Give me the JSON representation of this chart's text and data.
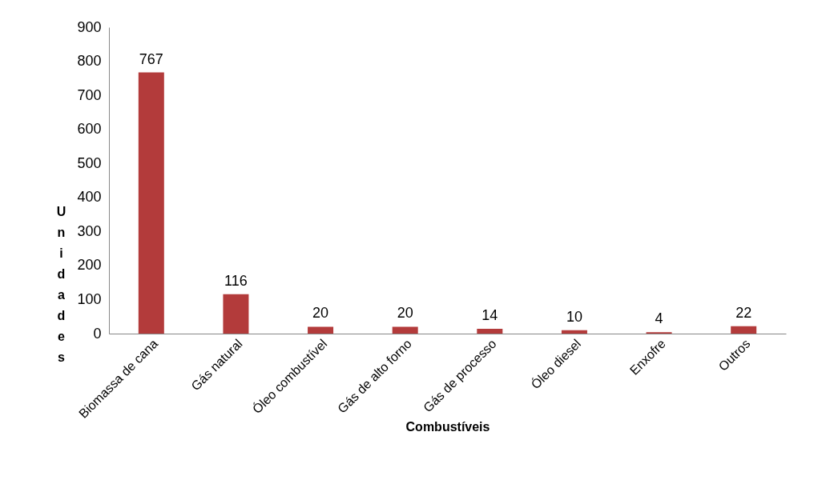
{
  "chart_data": {
    "type": "bar",
    "xlabel": "Combustíveis",
    "ylabel": "Unidades",
    "categories": [
      "Biomassa de cana",
      "Gás natural",
      "Óleo combustível",
      "Gás de alto forno",
      "Gás de processo",
      "Óleo diesel",
      "Enxofre",
      "Outros"
    ],
    "values": [
      767,
      116,
      20,
      20,
      14,
      10,
      4,
      22
    ],
    "color": "#b33b3b",
    "ylim": [
      0,
      900
    ],
    "yticks": [
      0,
      100,
      200,
      300,
      400,
      500,
      600,
      700,
      800,
      900
    ],
    "grid": false,
    "data_labels": true
  }
}
